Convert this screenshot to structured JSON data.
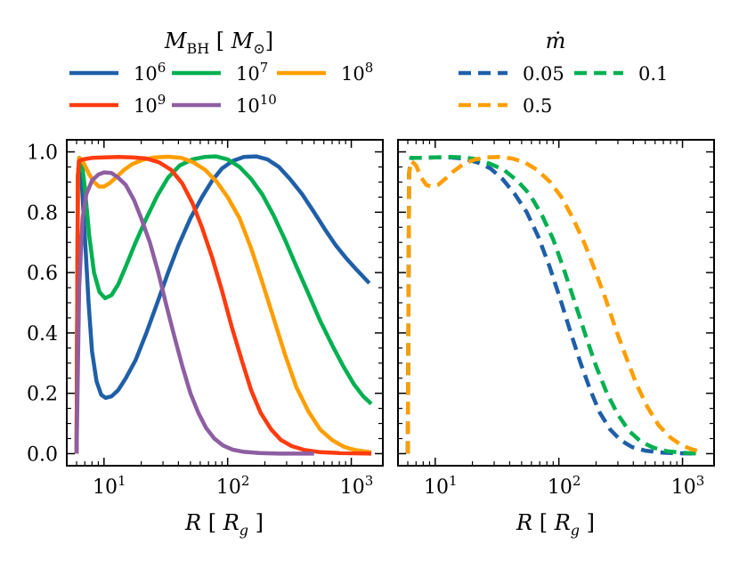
{
  "legend": {
    "mass": {
      "title": "M_BH [ M_sun ]",
      "entries": [
        {
          "label": "10^6",
          "color": "#1f5fa8"
        },
        {
          "label": "10^7",
          "color": "#00b050"
        },
        {
          "label": "10^8",
          "color": "#ff9e00"
        },
        {
          "label": "10^9",
          "color": "#ff3b0f"
        },
        {
          "label": "10^10",
          "color": "#8e5ea2"
        }
      ]
    },
    "mdot": {
      "title": "ṁ",
      "entries": [
        {
          "label": "0.05",
          "color": "#1f5fa8"
        },
        {
          "label": "0.1",
          "color": "#00b050"
        },
        {
          "label": "0.5",
          "color": "#ff9e00"
        }
      ]
    }
  },
  "chart_data": [
    {
      "type": "line",
      "panel": "left",
      "xscale": "log",
      "xlim": [
        5,
        1800
      ],
      "ylim": [
        -0.04,
        1.04
      ],
      "xlabel": "R [ R_g ]",
      "ylabel": "",
      "x_ticks": [
        {
          "value": 10,
          "label": "10^1"
        },
        {
          "value": 100,
          "label": "10^2"
        },
        {
          "value": 1000,
          "label": "10^3"
        }
      ],
      "y_ticks": [
        "0.0",
        "0.2",
        "0.4",
        "0.6",
        "0.8",
        "1.0"
      ],
      "series": [
        {
          "name": "10^6",
          "color": "#1f5fa8",
          "dash": "solid",
          "points": [
            [
              6.0,
              0.0
            ],
            [
              6.15,
              0.92
            ],
            [
              6.3,
              0.98
            ],
            [
              6.5,
              0.95
            ],
            [
              7.0,
              0.72
            ],
            [
              7.5,
              0.5
            ],
            [
              8.0,
              0.34
            ],
            [
              8.7,
              0.24
            ],
            [
              9.5,
              0.195
            ],
            [
              10.3,
              0.185
            ],
            [
              11.5,
              0.19
            ],
            [
              13,
              0.21
            ],
            [
              15,
              0.25
            ],
            [
              18,
              0.31
            ],
            [
              22,
              0.4
            ],
            [
              27,
              0.5
            ],
            [
              33,
              0.6
            ],
            [
              40,
              0.69
            ],
            [
              50,
              0.78
            ],
            [
              62,
              0.85
            ],
            [
              75,
              0.905
            ],
            [
              90,
              0.945
            ],
            [
              110,
              0.97
            ],
            [
              135,
              0.983
            ],
            [
              170,
              0.985
            ],
            [
              210,
              0.975
            ],
            [
              260,
              0.95
            ],
            [
              320,
              0.91
            ],
            [
              400,
              0.86
            ],
            [
              500,
              0.8
            ],
            [
              620,
              0.74
            ],
            [
              750,
              0.69
            ],
            [
              900,
              0.65
            ],
            [
              1100,
              0.61
            ],
            [
              1400,
              0.565
            ]
          ]
        },
        {
          "name": "10^7",
          "color": "#00b050",
          "dash": "solid",
          "points": [
            [
              6.0,
              0.0
            ],
            [
              6.15,
              0.92
            ],
            [
              6.3,
              0.98
            ],
            [
              6.6,
              0.97
            ],
            [
              7.0,
              0.88
            ],
            [
              7.6,
              0.72
            ],
            [
              8.3,
              0.6
            ],
            [
              9.2,
              0.535
            ],
            [
              10.2,
              0.515
            ],
            [
              11.5,
              0.525
            ],
            [
              13,
              0.56
            ],
            [
              15,
              0.62
            ],
            [
              18,
              0.7
            ],
            [
              22,
              0.78
            ],
            [
              27,
              0.855
            ],
            [
              33,
              0.915
            ],
            [
              41,
              0.955
            ],
            [
              52,
              0.975
            ],
            [
              65,
              0.983
            ],
            [
              80,
              0.985
            ],
            [
              100,
              0.975
            ],
            [
              125,
              0.95
            ],
            [
              155,
              0.91
            ],
            [
              190,
              0.86
            ],
            [
              235,
              0.79
            ],
            [
              290,
              0.71
            ],
            [
              360,
              0.62
            ],
            [
              450,
              0.53
            ],
            [
              560,
              0.44
            ],
            [
              700,
              0.36
            ],
            [
              860,
              0.29
            ],
            [
              1050,
              0.23
            ],
            [
              1250,
              0.19
            ],
            [
              1450,
              0.165
            ]
          ]
        },
        {
          "name": "10^8",
          "color": "#ff9e00",
          "dash": "solid",
          "points": [
            [
              6.0,
              0.0
            ],
            [
              6.15,
              0.92
            ],
            [
              6.3,
              0.98
            ],
            [
              6.6,
              0.975
            ],
            [
              7.0,
              0.955
            ],
            [
              7.6,
              0.925
            ],
            [
              8.3,
              0.9
            ],
            [
              9.1,
              0.885
            ],
            [
              10,
              0.885
            ],
            [
              11,
              0.895
            ],
            [
              12.5,
              0.915
            ],
            [
              14.5,
              0.94
            ],
            [
              17,
              0.96
            ],
            [
              21,
              0.975
            ],
            [
              26,
              0.982
            ],
            [
              33,
              0.984
            ],
            [
              42,
              0.98
            ],
            [
              53,
              0.965
            ],
            [
              66,
              0.94
            ],
            [
              82,
              0.9
            ],
            [
              100,
              0.85
            ],
            [
              125,
              0.78
            ],
            [
              155,
              0.68
            ],
            [
              190,
              0.57
            ],
            [
              235,
              0.45
            ],
            [
              290,
              0.33
            ],
            [
              360,
              0.22
            ],
            [
              450,
              0.14
            ],
            [
              560,
              0.08
            ],
            [
              700,
              0.045
            ],
            [
              880,
              0.022
            ],
            [
              1100,
              0.011
            ],
            [
              1450,
              0.005
            ]
          ]
        },
        {
          "name": "10^9",
          "color": "#ff3b0f",
          "dash": "solid",
          "points": [
            [
              6.0,
              0.0
            ],
            [
              6.15,
              0.92
            ],
            [
              6.3,
              0.97
            ],
            [
              6.8,
              0.975
            ],
            [
              8,
              0.98
            ],
            [
              10,
              0.982
            ],
            [
              13,
              0.983
            ],
            [
              17,
              0.982
            ],
            [
              22,
              0.978
            ],
            [
              28,
              0.965
            ],
            [
              35,
              0.94
            ],
            [
              43,
              0.895
            ],
            [
              52,
              0.83
            ],
            [
              62,
              0.75
            ],
            [
              75,
              0.65
            ],
            [
              90,
              0.54
            ],
            [
              108,
              0.42
            ],
            [
              130,
              0.31
            ],
            [
              155,
              0.21
            ],
            [
              185,
              0.135
            ],
            [
              225,
              0.08
            ],
            [
              270,
              0.045
            ],
            [
              330,
              0.025
            ],
            [
              420,
              0.012
            ],
            [
              560,
              0.005
            ],
            [
              800,
              0.002
            ],
            [
              1450,
              0.0
            ]
          ]
        },
        {
          "name": "10^10",
          "color": "#8e5ea2",
          "dash": "solid",
          "points": [
            [
              6.0,
              0.0
            ],
            [
              6.3,
              0.55
            ],
            [
              6.7,
              0.78
            ],
            [
              7.2,
              0.86
            ],
            [
              8,
              0.905
            ],
            [
              9,
              0.925
            ],
            [
              10,
              0.932
            ],
            [
              11.5,
              0.93
            ],
            [
              13,
              0.915
            ],
            [
              15,
              0.89
            ],
            [
              17.5,
              0.84
            ],
            [
              20,
              0.78
            ],
            [
              23.5,
              0.7
            ],
            [
              27.5,
              0.6
            ],
            [
              32,
              0.49
            ],
            [
              37,
              0.39
            ],
            [
              43,
              0.29
            ],
            [
              50,
              0.2
            ],
            [
              58,
              0.135
            ],
            [
              67,
              0.085
            ],
            [
              78,
              0.05
            ],
            [
              92,
              0.027
            ],
            [
              110,
              0.013
            ],
            [
              135,
              0.006
            ],
            [
              180,
              0.002
            ],
            [
              260,
              0.0
            ],
            [
              500,
              0.0
            ]
          ]
        }
      ]
    },
    {
      "type": "line",
      "panel": "right",
      "xscale": "log",
      "xlim": [
        5,
        1800
      ],
      "ylim": [
        -0.04,
        1.04
      ],
      "xlabel": "R [ R_g ]",
      "x_ticks": [
        {
          "value": 10,
          "label": "10^1"
        },
        {
          "value": 100,
          "label": "10^2"
        },
        {
          "value": 1000,
          "label": "10^3"
        }
      ],
      "series": [
        {
          "name": "0.05",
          "color": "#1f5fa8",
          "dash": "dashed",
          "points": [
            [
              6.0,
              0.0
            ],
            [
              6.15,
              0.93
            ],
            [
              6.4,
              0.98
            ],
            [
              7,
              0.98
            ],
            [
              8,
              0.98
            ],
            [
              10,
              0.982
            ],
            [
              13,
              0.982
            ],
            [
              17,
              0.978
            ],
            [
              22,
              0.965
            ],
            [
              28,
              0.945
            ],
            [
              35,
              0.91
            ],
            [
              44,
              0.86
            ],
            [
              55,
              0.8
            ],
            [
              68,
              0.72
            ],
            [
              84,
              0.62
            ],
            [
              103,
              0.51
            ],
            [
              125,
              0.4
            ],
            [
              150,
              0.3
            ],
            [
              180,
              0.21
            ],
            [
              215,
              0.135
            ],
            [
              260,
              0.08
            ],
            [
              315,
              0.045
            ],
            [
              390,
              0.022
            ],
            [
              500,
              0.01
            ],
            [
              700,
              0.003
            ],
            [
              1000,
              0.001
            ],
            [
              1350,
              0.0
            ]
          ]
        },
        {
          "name": "0.1",
          "color": "#00b050",
          "dash": "dashed",
          "points": [
            [
              6.0,
              0.0
            ],
            [
              6.15,
              0.93
            ],
            [
              6.4,
              0.98
            ],
            [
              7,
              0.98
            ],
            [
              8,
              0.98
            ],
            [
              10,
              0.982
            ],
            [
              13,
              0.983
            ],
            [
              17,
              0.982
            ],
            [
              22,
              0.975
            ],
            [
              28,
              0.96
            ],
            [
              36,
              0.94
            ],
            [
              46,
              0.905
            ],
            [
              58,
              0.86
            ],
            [
              73,
              0.79
            ],
            [
              90,
              0.71
            ],
            [
              110,
              0.61
            ],
            [
              135,
              0.5
            ],
            [
              165,
              0.39
            ],
            [
              200,
              0.29
            ],
            [
              245,
              0.2
            ],
            [
              300,
              0.13
            ],
            [
              370,
              0.075
            ],
            [
              460,
              0.04
            ],
            [
              580,
              0.02
            ],
            [
              750,
              0.008
            ],
            [
              1000,
              0.003
            ],
            [
              1350,
              0.0
            ]
          ]
        },
        {
          "name": "0.5",
          "color": "#ff9e00",
          "dash": "dashed",
          "points": [
            [
              6.0,
              0.0
            ],
            [
              6.15,
              0.93
            ],
            [
              6.4,
              0.97
            ],
            [
              7,
              0.955
            ],
            [
              7.7,
              0.915
            ],
            [
              8.5,
              0.89
            ],
            [
              9.4,
              0.885
            ],
            [
              10.5,
              0.89
            ],
            [
              12,
              0.91
            ],
            [
              14,
              0.935
            ],
            [
              17,
              0.96
            ],
            [
              21,
              0.975
            ],
            [
              26,
              0.982
            ],
            [
              33,
              0.983
            ],
            [
              42,
              0.978
            ],
            [
              53,
              0.965
            ],
            [
              67,
              0.94
            ],
            [
              85,
              0.9
            ],
            [
              105,
              0.85
            ],
            [
              130,
              0.78
            ],
            [
              160,
              0.7
            ],
            [
              195,
              0.61
            ],
            [
              240,
              0.51
            ],
            [
              290,
              0.41
            ],
            [
              350,
              0.32
            ],
            [
              425,
              0.23
            ],
            [
              520,
              0.155
            ],
            [
              640,
              0.095
            ],
            [
              790,
              0.055
            ],
            [
              980,
              0.028
            ],
            [
              1200,
              0.014
            ],
            [
              1350,
              0.008
            ]
          ]
        }
      ]
    }
  ]
}
